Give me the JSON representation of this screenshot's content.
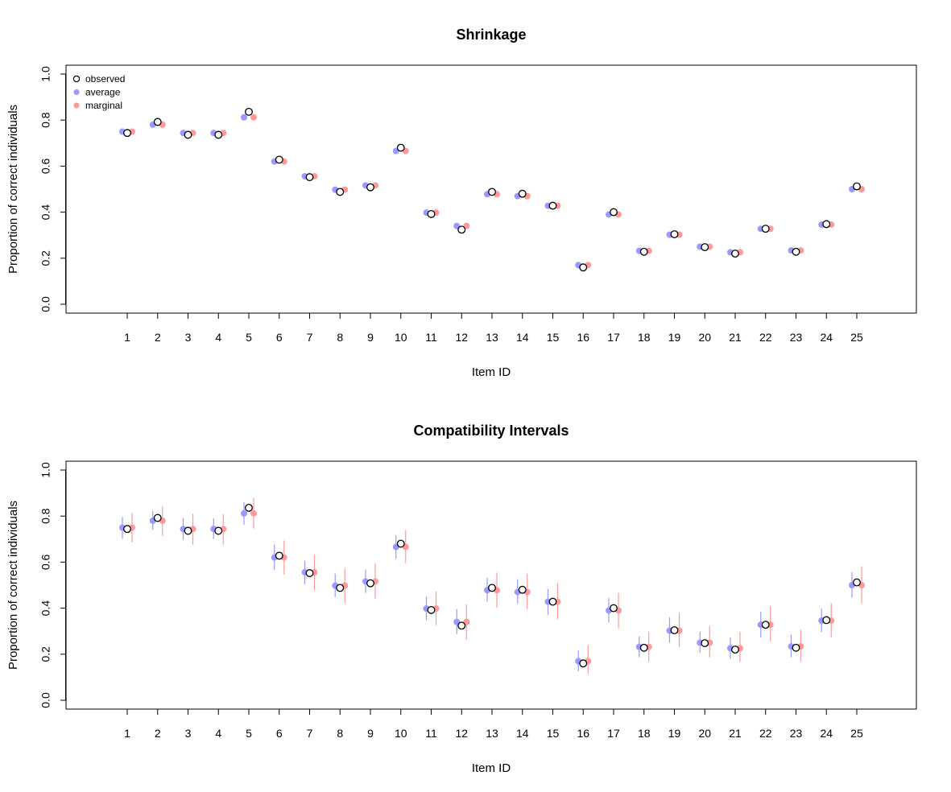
{
  "chart_data": [
    {
      "type": "scatter",
      "title": "Shrinkage",
      "xlabel": "Item ID",
      "ylabel": "Proportion of correct individuals",
      "ylim": [
        0,
        1
      ],
      "yticks": [
        "0.0",
        "0.2",
        "0.4",
        "0.6",
        "0.8",
        "1.0"
      ],
      "categories": [
        "1",
        "2",
        "3",
        "4",
        "5",
        "6",
        "7",
        "8",
        "9",
        "10",
        "11",
        "12",
        "13",
        "14",
        "15",
        "16",
        "17",
        "18",
        "19",
        "20",
        "21",
        "22",
        "23",
        "24",
        "25"
      ],
      "show_intervals": false,
      "grid": false,
      "legend": {
        "position": "top-left",
        "entries": [
          "observed",
          "average",
          "marginal"
        ]
      },
      "series": [
        {
          "name": "observed",
          "color": "#000000",
          "style": "open-circle",
          "values": [
            0.744,
            0.792,
            0.736,
            0.736,
            0.836,
            0.628,
            0.552,
            0.488,
            0.508,
            0.68,
            0.392,
            0.324,
            0.488,
            0.48,
            0.428,
            0.16,
            0.4,
            0.228,
            0.304,
            0.248,
            0.22,
            0.328,
            0.228,
            0.348,
            0.512
          ]
        },
        {
          "name": "average",
          "color": "#9999ff",
          "style": "filled-circle",
          "values": [
            0.75,
            0.78,
            0.744,
            0.744,
            0.812,
            0.62,
            0.556,
            0.498,
            0.516,
            0.666,
            0.398,
            0.34,
            0.478,
            0.47,
            0.428,
            0.17,
            0.39,
            0.232,
            0.302,
            0.25,
            0.226,
            0.328,
            0.234,
            0.346,
            0.5
          ]
        },
        {
          "name": "marginal",
          "color": "#ff9999",
          "style": "filled-circle",
          "values": [
            0.75,
            0.78,
            0.744,
            0.744,
            0.812,
            0.62,
            0.556,
            0.498,
            0.516,
            0.666,
            0.398,
            0.34,
            0.478,
            0.47,
            0.428,
            0.17,
            0.39,
            0.232,
            0.302,
            0.25,
            0.226,
            0.328,
            0.234,
            0.346,
            0.5
          ]
        }
      ]
    },
    {
      "type": "scatter",
      "title": "Compatibility Intervals",
      "xlabel": "Item ID",
      "ylabel": "Proportion of correct individuals",
      "ylim": [
        0,
        1
      ],
      "yticks": [
        "0.0",
        "0.2",
        "0.4",
        "0.6",
        "0.8",
        "1.0"
      ],
      "categories": [
        "1",
        "2",
        "3",
        "4",
        "5",
        "6",
        "7",
        "8",
        "9",
        "10",
        "11",
        "12",
        "13",
        "14",
        "15",
        "16",
        "17",
        "18",
        "19",
        "20",
        "21",
        "22",
        "23",
        "24",
        "25"
      ],
      "show_intervals": true,
      "grid": false,
      "series": [
        {
          "name": "observed",
          "color": "#000000",
          "style": "open-circle",
          "values": [
            0.744,
            0.792,
            0.736,
            0.736,
            0.836,
            0.628,
            0.552,
            0.488,
            0.508,
            0.68,
            0.392,
            0.324,
            0.488,
            0.48,
            0.428,
            0.16,
            0.4,
            0.228,
            0.304,
            0.248,
            0.22,
            0.328,
            0.228,
            0.348,
            0.512
          ]
        },
        {
          "name": "average",
          "color": "#9999ff",
          "style": "filled-circle",
          "values": [
            0.75,
            0.78,
            0.744,
            0.744,
            0.812,
            0.62,
            0.556,
            0.498,
            0.516,
            0.666,
            0.398,
            0.34,
            0.478,
            0.47,
            0.428,
            0.17,
            0.39,
            0.232,
            0.302,
            0.25,
            0.226,
            0.328,
            0.234,
            0.346,
            0.5
          ],
          "lower": [
            0.702,
            0.74,
            0.696,
            0.7,
            0.762,
            0.566,
            0.504,
            0.448,
            0.466,
            0.614,
            0.348,
            0.288,
            0.428,
            0.42,
            0.372,
            0.126,
            0.338,
            0.186,
            0.25,
            0.206,
            0.18,
            0.272,
            0.186,
            0.296,
            0.446
          ],
          "upper": [
            0.796,
            0.822,
            0.792,
            0.79,
            0.86,
            0.676,
            0.606,
            0.55,
            0.568,
            0.716,
            0.45,
            0.396,
            0.532,
            0.526,
            0.484,
            0.216,
            0.444,
            0.278,
            0.36,
            0.298,
            0.272,
            0.384,
            0.284,
            0.398,
            0.556
          ]
        },
        {
          "name": "marginal",
          "color": "#ff9999",
          "style": "filled-circle",
          "values": [
            0.75,
            0.78,
            0.744,
            0.744,
            0.812,
            0.62,
            0.556,
            0.498,
            0.516,
            0.666,
            0.398,
            0.34,
            0.478,
            0.47,
            0.428,
            0.17,
            0.39,
            0.232,
            0.302,
            0.25,
            0.226,
            0.328,
            0.234,
            0.346,
            0.5
          ],
          "lower": [
            0.686,
            0.714,
            0.676,
            0.676,
            0.746,
            0.546,
            0.478,
            0.422,
            0.44,
            0.596,
            0.326,
            0.264,
            0.402,
            0.396,
            0.352,
            0.114,
            0.312,
            0.168,
            0.23,
            0.186,
            0.166,
            0.256,
            0.168,
            0.274,
            0.42
          ],
          "upper": [
            0.814,
            0.842,
            0.81,
            0.808,
            0.878,
            0.694,
            0.63,
            0.572,
            0.594,
            0.74,
            0.472,
            0.416,
            0.554,
            0.55,
            0.508,
            0.238,
            0.466,
            0.298,
            0.38,
            0.322,
            0.298,
            0.408,
            0.306,
            0.422,
            0.582
          ]
        }
      ]
    }
  ]
}
